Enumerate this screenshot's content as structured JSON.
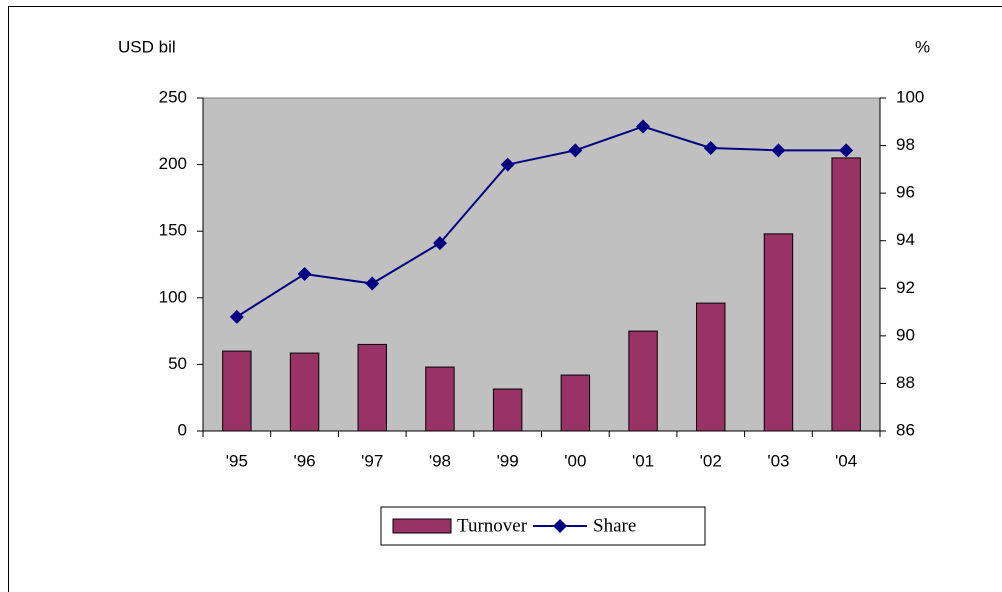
{
  "chart_data": {
    "type": "bar",
    "ylabel": "USD bil",
    "y2label": "%",
    "categories": [
      "'95",
      "'96",
      "'97",
      "'98",
      "'99",
      "'00",
      "'01",
      "'02",
      "'03",
      "'04"
    ],
    "series": [
      {
        "name": "Turnover",
        "type": "bar",
        "color": "#993366",
        "values": [
          60,
          58.5,
          65,
          48,
          31.5,
          42,
          75,
          96,
          148,
          205
        ]
      },
      {
        "name": "Share",
        "type": "line",
        "axis": "y2",
        "color": "#000080",
        "values": [
          90.8,
          92.6,
          92.2,
          93.9,
          97.2,
          97.8,
          98.8,
          97.9,
          97.8,
          97.8
        ]
      }
    ],
    "ylim": [
      0,
      250
    ],
    "yticks": [
      0,
      50,
      100,
      150,
      200,
      250
    ],
    "y2lim": [
      86,
      100
    ],
    "y2ticks": [
      86,
      88,
      90,
      92,
      94,
      96,
      98,
      100
    ],
    "plot_background": "#c0c0c0",
    "legend": "bottom"
  }
}
